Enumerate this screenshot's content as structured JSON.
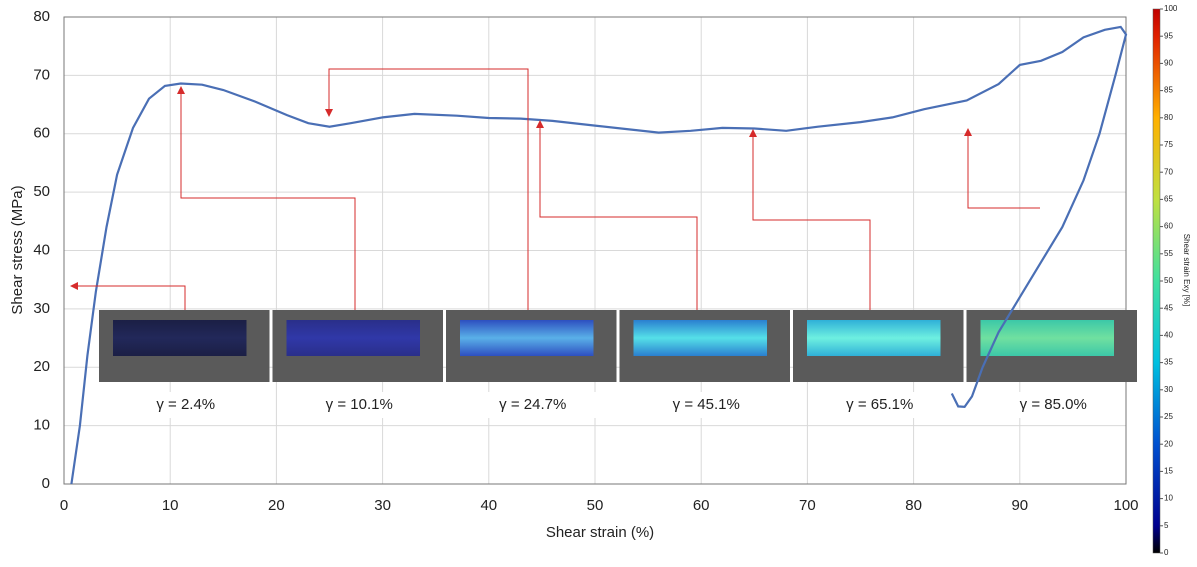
{
  "chart_data": {
    "type": "line",
    "x_label": "Shear strain (%)",
    "y_label": "Shear stress (MPa)",
    "x": [
      0.7,
      1.5,
      2.2,
      3,
      4,
      5,
      6.5,
      8,
      9.5,
      11,
      13,
      15,
      18,
      21,
      23,
      25,
      27,
      30,
      33,
      37,
      40,
      43,
      46,
      50,
      53,
      56,
      59,
      62,
      65,
      68,
      71,
      75,
      78,
      81,
      85,
      88,
      90,
      92,
      94,
      96,
      98,
      99.5,
      100,
      99,
      97.5,
      96,
      94,
      92,
      90,
      88,
      86.5,
      85.5,
      84.8,
      84.2,
      83.6
    ],
    "values": [
      0,
      10,
      22,
      33,
      44,
      53,
      61,
      66,
      68.2,
      68.6,
      68.4,
      67.5,
      65.5,
      63.2,
      61.8,
      61.2,
      61.8,
      62.8,
      63.4,
      63.1,
      62.7,
      62.6,
      62.2,
      61.4,
      60.8,
      60.2,
      60.5,
      61,
      60.9,
      60.5,
      61.2,
      62,
      62.8,
      64.2,
      65.7,
      68.5,
      71.8,
      72.5,
      74,
      76.5,
      77.8,
      78.3,
      77,
      70,
      60,
      52,
      44,
      38,
      32,
      26,
      20,
      15,
      13.2,
      13.3,
      15.5
    ],
    "color": "#4a6fb5",
    "xlim": [
      0,
      100
    ],
    "xticks": [
      0,
      10,
      20,
      30,
      40,
      50,
      60,
      70,
      80,
      90,
      100
    ],
    "ylim": [
      0,
      80
    ],
    "yticks": [
      0,
      10,
      20,
      30,
      40,
      50,
      60,
      70,
      80
    ],
    "grid": true,
    "insets": [
      "γ = 2.4%",
      "γ = 10.1%",
      "γ = 24.7%",
      "γ = 45.1%",
      "γ = 65.1%",
      "γ = 85.0%"
    ],
    "colorbar": {
      "label": "Shear strain Exy [%]",
      "lim": [
        0,
        100
      ],
      "ticks": [
        0,
        5,
        10,
        15,
        20,
        25,
        30,
        35,
        40,
        45,
        50,
        55,
        60,
        65,
        70,
        75,
        80,
        85,
        90,
        95,
        100
      ]
    }
  }
}
